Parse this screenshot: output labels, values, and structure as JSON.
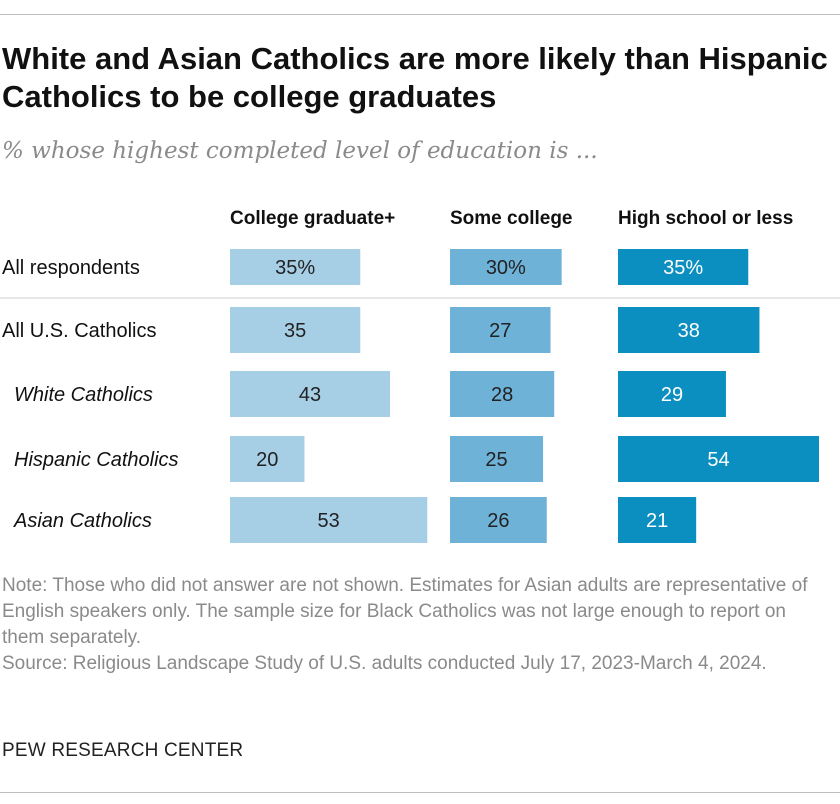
{
  "title": "White and Asian Catholics are more likely than Hispanic Catholics to be college graduates",
  "subtitle": "% whose highest completed level of education is ...",
  "colors": {
    "college": "#a6cfe6",
    "some_college": "#6eb2d8",
    "high_school": "#0b8fc0"
  },
  "chart_data": {
    "type": "bar",
    "orientation": "horizontal",
    "layout": "small-multiples",
    "categories": [
      "All respondents",
      "All U.S. Catholics",
      "White Catholics",
      "Hispanic Catholics",
      "Asian Catholics"
    ],
    "display_labels": [
      [
        "35%",
        "35",
        "43",
        "20",
        "53"
      ],
      [
        "30%",
        "27",
        "28",
        "25",
        "26"
      ],
      [
        "35%",
        "38",
        "29",
        "54",
        "21"
      ]
    ],
    "series": [
      {
        "name": "College graduate+",
        "values": [
          35,
          35,
          43,
          20,
          53
        ]
      },
      {
        "name": "Some college",
        "values": [
          30,
          27,
          28,
          25,
          26
        ]
      },
      {
        "name": "High school or less",
        "values": [
          35,
          38,
          29,
          54,
          21
        ]
      }
    ],
    "unit": "%",
    "xlim": [
      0,
      54
    ]
  },
  "notes": {
    "note": "Note: Those who did not answer are not shown. Estimates for Asian adults are representative of English speakers only. The sample size for Black Catholics was not large enough to report on them separately.",
    "source": "Source: Religious Landscape Study of U.S. adults conducted July 17, 2023-March 4, 2024."
  },
  "org": "PEW RESEARCH CENTER"
}
